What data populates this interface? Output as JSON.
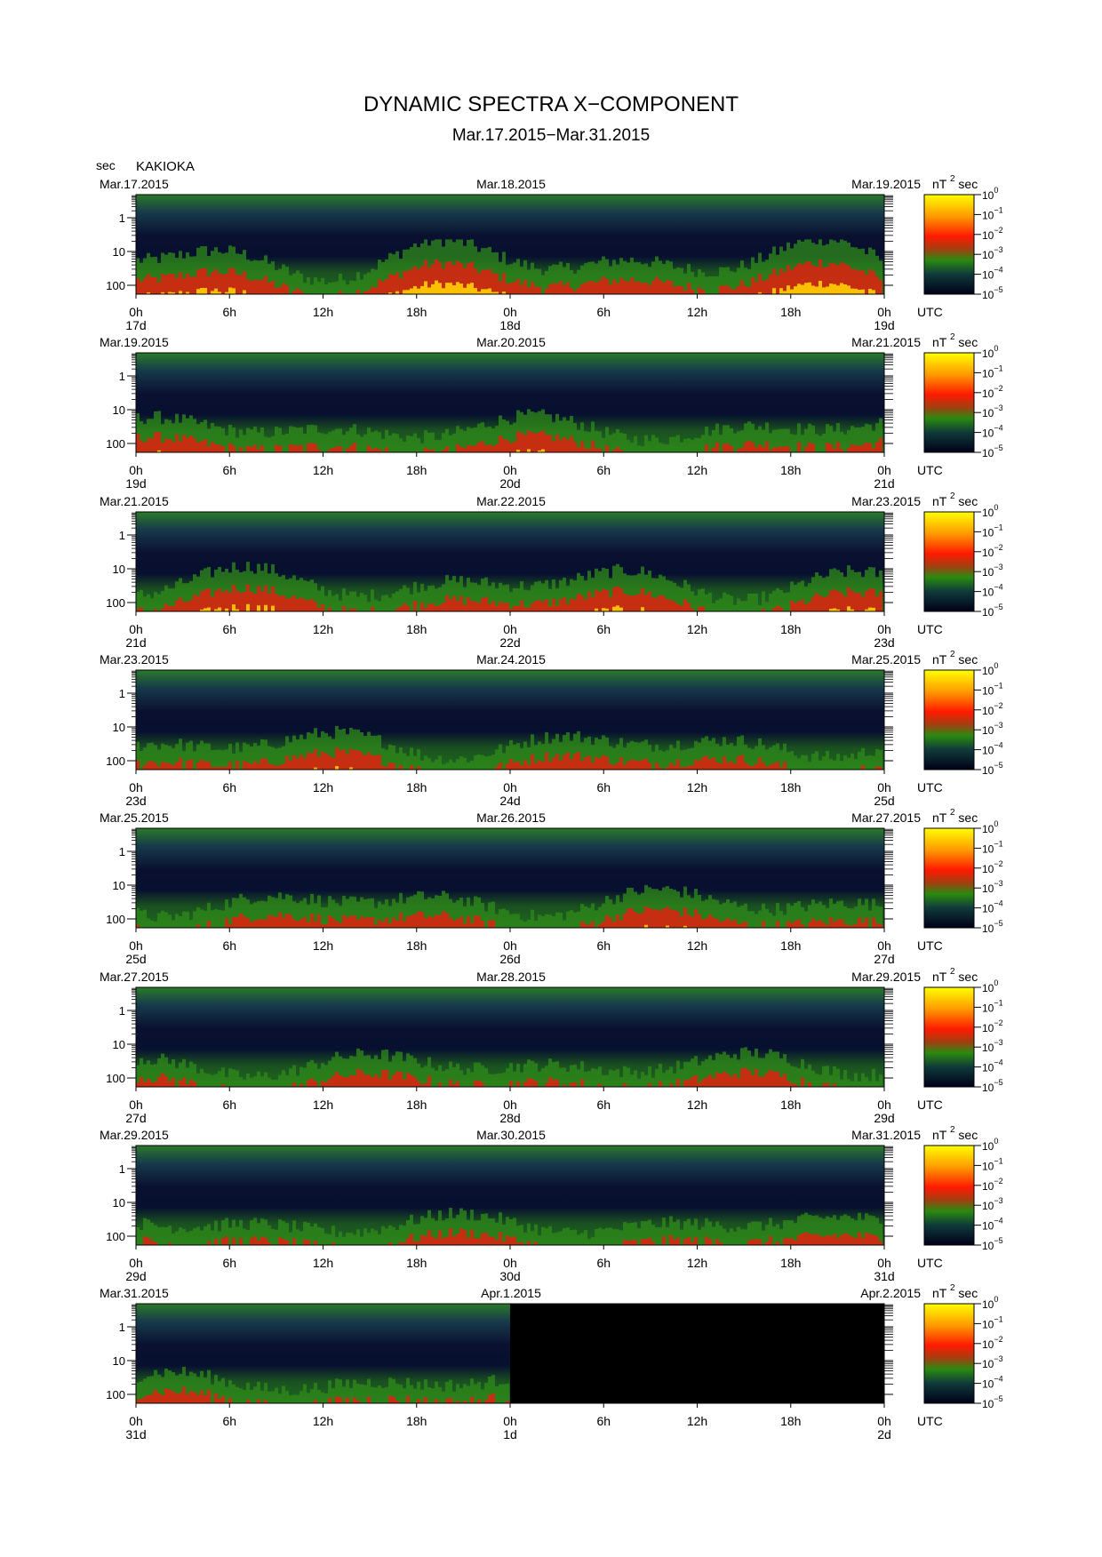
{
  "header": {
    "title": "DYNAMIC SPECTRA X−COMPONENT",
    "subtitle": "Mar.17.2015−Mar.31.2015",
    "unit": "sec",
    "station": "KAKIOKA"
  },
  "colorbar": {
    "label": "nT",
    "label_sup": "2",
    "label_suffix": "sec",
    "ticks": [
      {
        "base": "10",
        "exp": "0"
      },
      {
        "base": "10",
        "exp": "−1"
      },
      {
        "base": "10",
        "exp": "−2"
      },
      {
        "base": "10",
        "exp": "−3"
      },
      {
        "base": "10",
        "exp": "−4"
      },
      {
        "base": "10",
        "exp": "−5"
      }
    ],
    "colors": [
      "#ffff00",
      "#ff9900",
      "#ff0000",
      "#228800",
      "#1a6b1a",
      "#0a1a5a",
      "#000010"
    ]
  },
  "chart_data": {
    "type": "heatmap",
    "y_ticks": [
      "1",
      "10",
      "100"
    ],
    "x_ticks": [
      "0h",
      "6h",
      "12h",
      "18h",
      "0h",
      "6h",
      "12h",
      "18h",
      "0h"
    ],
    "x_unit": "UTC",
    "panels": [
      {
        "left_date": "Mar.17.2015",
        "mid_date": "Mar.18.2015",
        "right_date": "Mar.19.2015",
        "days": [
          "17d",
          "18d",
          "19d"
        ],
        "activity": 0.9,
        "data_fraction": 1.0
      },
      {
        "left_date": "Mar.19.2015",
        "mid_date": "Mar.20.2015",
        "right_date": "Mar.21.2015",
        "days": [
          "19d",
          "20d",
          "21d"
        ],
        "activity": 0.55,
        "data_fraction": 1.0
      },
      {
        "left_date": "Mar.21.2015",
        "mid_date": "Mar.22.2015",
        "right_date": "Mar.23.2015",
        "days": [
          "21d",
          "22d",
          "23d"
        ],
        "activity": 0.7,
        "data_fraction": 1.0
      },
      {
        "left_date": "Mar.23.2015",
        "mid_date": "Mar.24.2015",
        "right_date": "Mar.25.2015",
        "days": [
          "23d",
          "24d",
          "25d"
        ],
        "activity": 0.6,
        "data_fraction": 1.0
      },
      {
        "left_date": "Mar.25.2015",
        "mid_date": "Mar.26.2015",
        "right_date": "Mar.27.2015",
        "days": [
          "25d",
          "26d",
          "27d"
        ],
        "activity": 0.6,
        "data_fraction": 1.0
      },
      {
        "left_date": "Mar.27.2015",
        "mid_date": "Mar.28.2015",
        "right_date": "Mar.29.2015",
        "days": [
          "27d",
          "28d",
          "29d"
        ],
        "activity": 0.5,
        "data_fraction": 1.0
      },
      {
        "left_date": "Mar.29.2015",
        "mid_date": "Mar.30.2015",
        "right_date": "Mar.31.2015",
        "days": [
          "29d",
          "30d",
          "31d"
        ],
        "activity": 0.45,
        "data_fraction": 1.0
      },
      {
        "left_date": "Mar.31.2015",
        "mid_date": "Apr.1.2015",
        "right_date": "Apr.2.2015",
        "days": [
          "31d",
          "1d",
          "2d"
        ],
        "activity": 0.45,
        "data_fraction": 0.5
      }
    ]
  }
}
